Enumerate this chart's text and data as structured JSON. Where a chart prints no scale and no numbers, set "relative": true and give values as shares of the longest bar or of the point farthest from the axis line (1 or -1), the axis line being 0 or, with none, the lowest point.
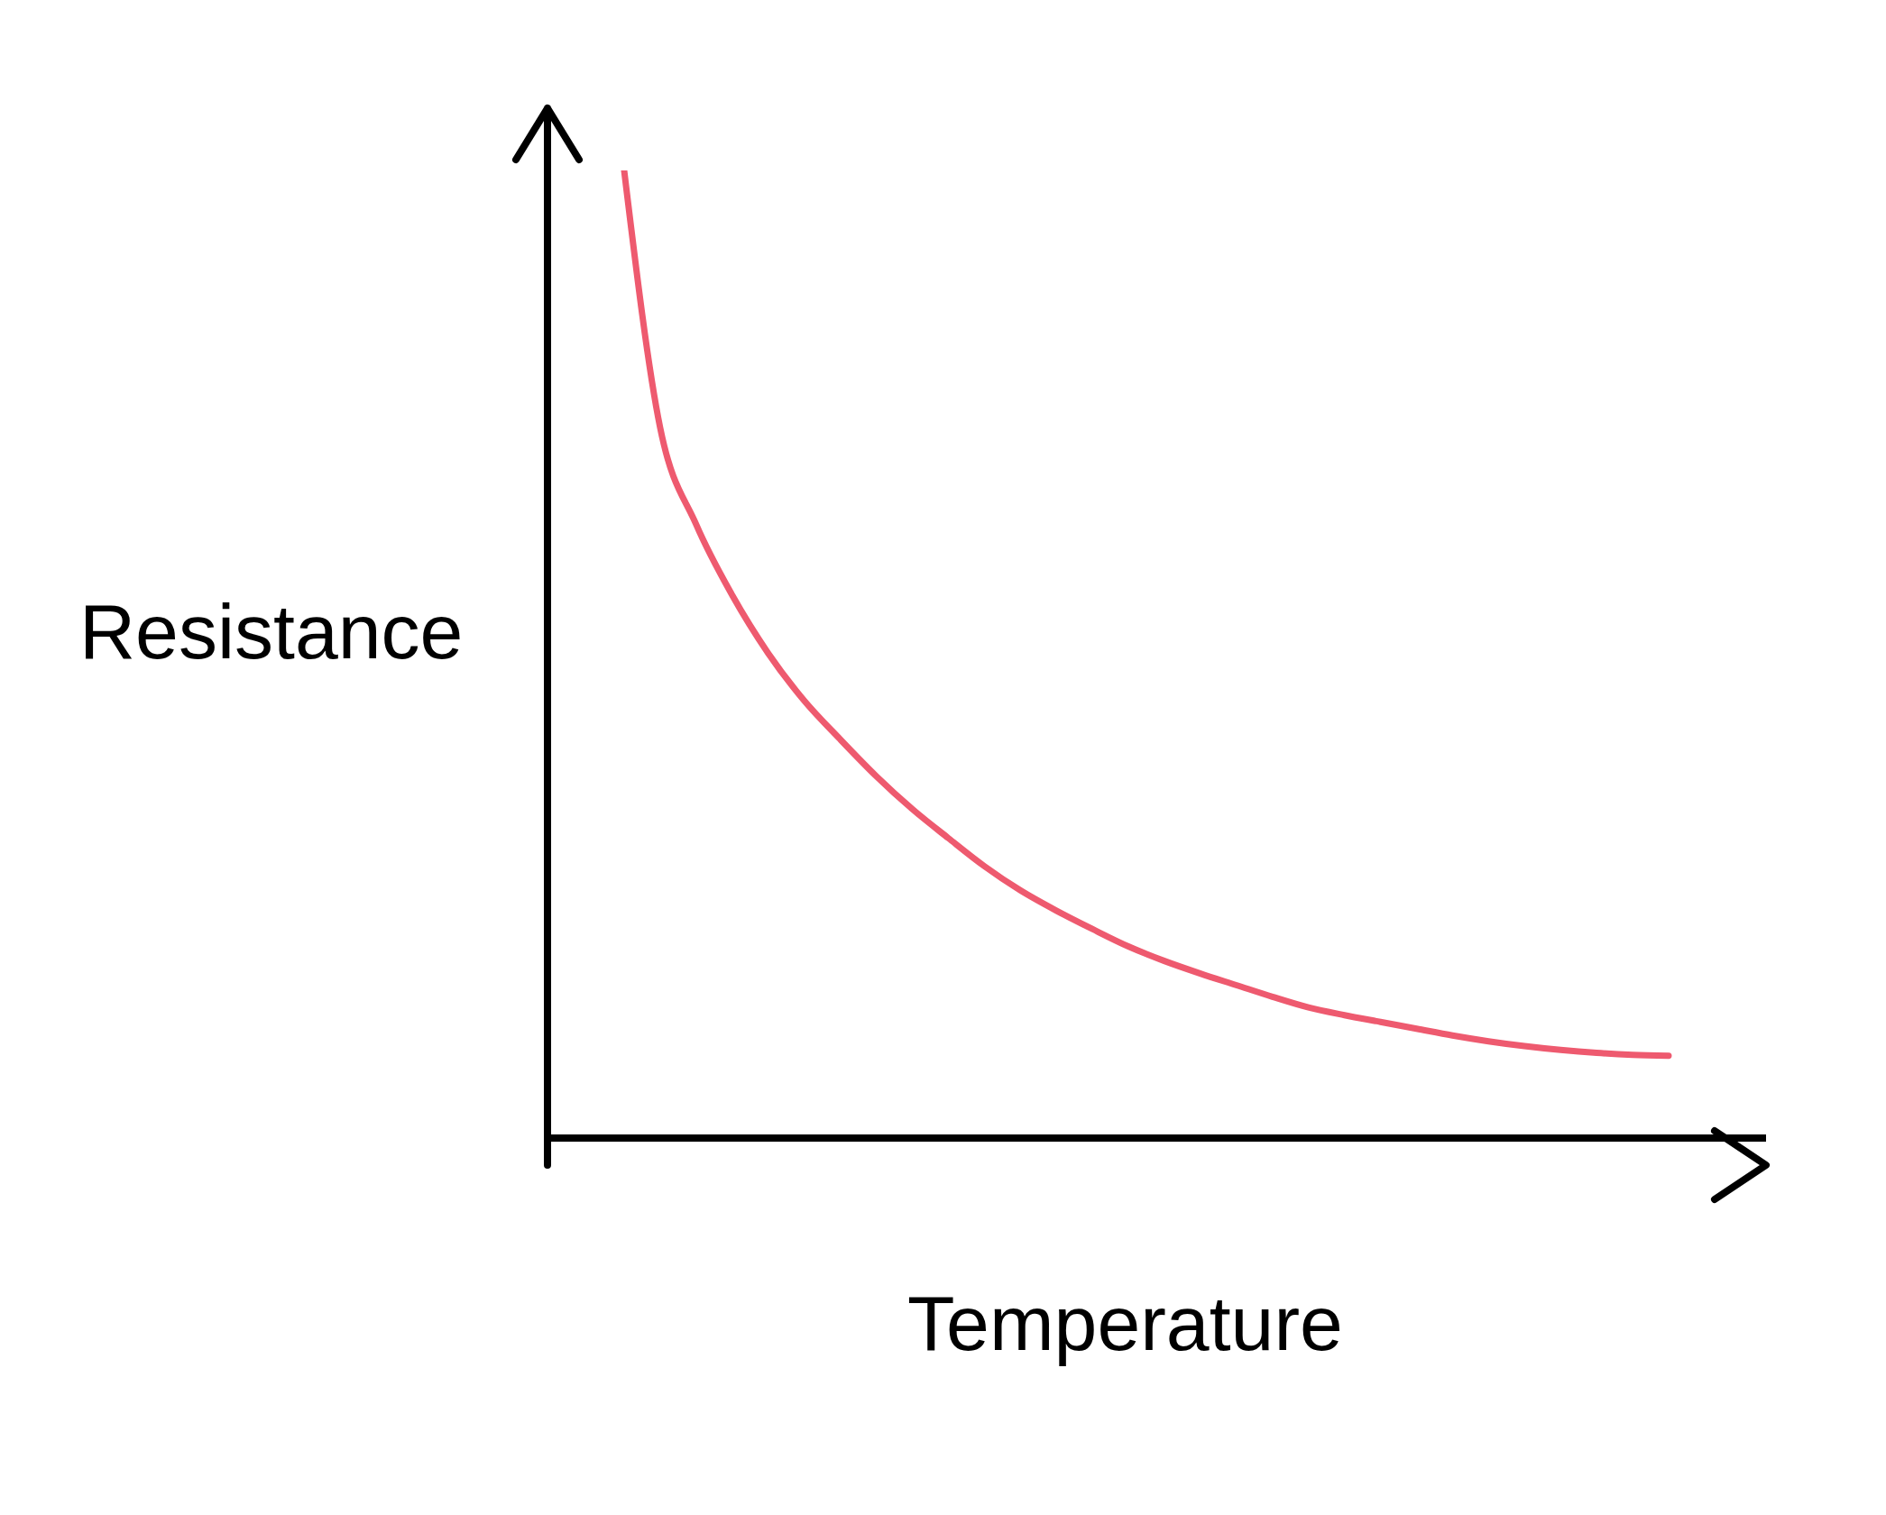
{
  "chart_data": {
    "type": "line",
    "xlabel": "Temperature",
    "ylabel": "Resistance",
    "relative": true,
    "marker": "none",
    "grid": false,
    "legend": false,
    "categories": [
      null,
      null,
      null,
      null,
      null,
      null,
      null,
      null,
      null,
      null,
      null,
      null,
      null,
      null,
      null,
      null,
      null,
      null,
      null,
      null,
      null,
      null,
      null,
      null,
      null,
      null,
      null,
      null,
      null,
      null
    ],
    "series": [
      {
        "color": "#ee5a6f",
        "values": [
          1.0,
          0.734,
          0.634,
          0.561,
          0.501,
          0.452,
          0.412,
          0.374,
          0.34,
          0.31,
          0.281,
          0.256,
          0.235,
          0.216,
          0.198,
          0.183,
          0.17,
          0.158,
          0.146,
          0.135,
          0.127,
          0.12,
          0.113,
          0.106,
          0.1,
          0.095,
          0.091,
          0.088,
          0.086,
          0.085
        ]
      }
    ]
  }
}
